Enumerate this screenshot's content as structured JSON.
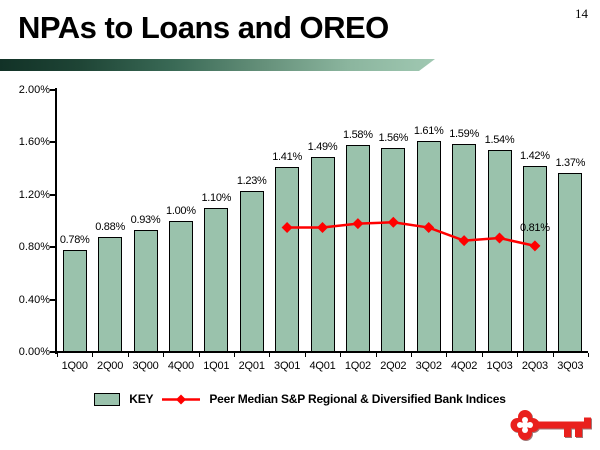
{
  "slide": {
    "page_number": "14",
    "title": "NPAs to Loans and OREO"
  },
  "chart_data": {
    "type": "bar",
    "title": "NPAs to Loans and OREO",
    "xlabel": "",
    "ylabel": "",
    "categories": [
      "1Q00",
      "2Q00",
      "3Q00",
      "4Q00",
      "1Q01",
      "2Q01",
      "3Q01",
      "4Q01",
      "1Q02",
      "2Q02",
      "3Q02",
      "4Q02",
      "1Q03",
      "2Q03",
      "3Q03"
    ],
    "series": [
      {
        "name": "KEY",
        "type": "bar",
        "color": "#9AC2AC",
        "values": [
          0.78,
          0.88,
          0.93,
          1.0,
          1.1,
          1.23,
          1.41,
          1.49,
          1.58,
          1.56,
          1.61,
          1.59,
          1.54,
          1.42,
          1.37
        ],
        "labels": [
          "0.78%",
          "0.88%",
          "0.93%",
          "1.00%",
          "1.10%",
          "1.23%",
          "1.41%",
          "1.49%",
          "1.58%",
          "1.56%",
          "1.61%",
          "1.59%",
          "1.54%",
          "1.42%",
          "1.37%"
        ]
      },
      {
        "name": "Peer Median S&P Regional & Diversified Bank Indices",
        "type": "line",
        "color": "#FF0000",
        "values": [
          null,
          null,
          null,
          null,
          null,
          null,
          0.95,
          0.95,
          0.98,
          0.99,
          0.95,
          0.85,
          0.87,
          0.81,
          null
        ],
        "labels": [
          null,
          null,
          null,
          null,
          null,
          null,
          null,
          null,
          null,
          null,
          null,
          null,
          null,
          "0.81%",
          null
        ]
      }
    ],
    "ylim": [
      0,
      2.0
    ],
    "ytick_labels": [
      "0.00%",
      "0.40%",
      "0.80%",
      "1.20%",
      "1.60%",
      "2.00%"
    ],
    "grid": false,
    "legend_position": "bottom"
  },
  "logo": {
    "name": "KeyCorp red key logo",
    "color": "#E9201D"
  }
}
